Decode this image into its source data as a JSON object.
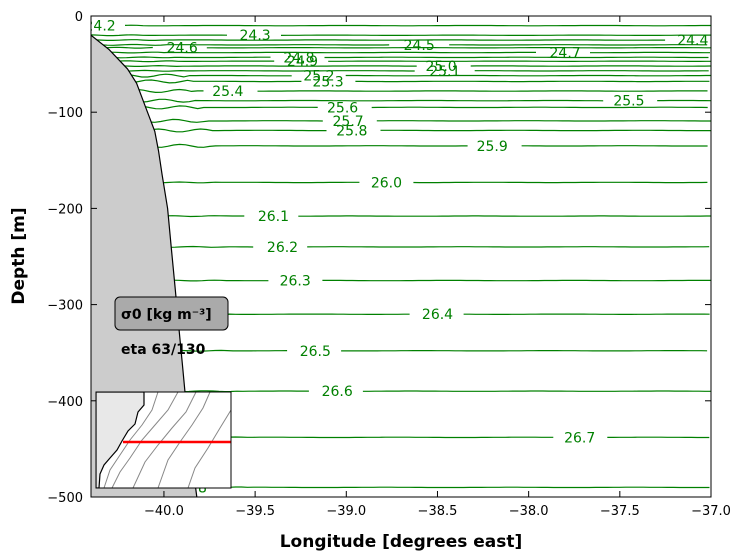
{
  "chart_data": {
    "type": "line",
    "variable_label": "σ0 [kg m⁻³]",
    "frame_label": "eta 63/130",
    "xlabel": "Longitude [degrees east]",
    "ylabel": "Depth [m]",
    "xlim": [
      -40.4,
      -37.0
    ],
    "ylim": [
      -500,
      0
    ],
    "xticks": [
      -40.0,
      -39.5,
      -39.0,
      -38.5,
      -38.0,
      -37.5,
      -37.0
    ],
    "xtick_labels": [
      "−40.0",
      "−39.5",
      "−39.0",
      "−38.5",
      "−38.0",
      "−37.5",
      "−37.0"
    ],
    "yticks": [
      0,
      -100,
      -200,
      -300,
      -400,
      -500
    ],
    "ytick_labels": [
      "0",
      "−100",
      "−200",
      "−300",
      "−400",
      "−500"
    ],
    "bathymetry": {
      "x": [
        -40.4,
        -40.3,
        -40.2,
        -40.15,
        -40.1,
        -40.05,
        -40.03,
        -40.01,
        -39.98,
        -39.96,
        -39.94,
        -39.92,
        -39.9,
        -39.88,
        -39.86,
        -39.84,
        -39.82
      ],
      "depth": [
        -20,
        -35,
        -55,
        -70,
        -95,
        -120,
        -140,
        -165,
        -200,
        -240,
        -280,
        -320,
        -360,
        -400,
        -440,
        -470,
        -500
      ]
    },
    "contours": [
      {
        "level": "24.2",
        "depth": -10,
        "label_lon": -40.35
      },
      {
        "level": "24.3",
        "depth": -20,
        "label_lon": -39.5
      },
      {
        "level": "24.4",
        "depth": -25,
        "label_lon": -37.1
      },
      {
        "level": "24.5",
        "depth": -30,
        "label_lon": -38.6
      },
      {
        "level": "24.6",
        "depth": -33,
        "label_lon": -39.9
      },
      {
        "level": "24.7",
        "depth": -38,
        "label_lon": -37.8
      },
      {
        "level": "24.8",
        "depth": -43,
        "label_lon": -39.26
      },
      {
        "level": "24.9",
        "depth": -47,
        "label_lon": -39.24
      },
      {
        "level": "25.0",
        "depth": -52,
        "label_lon": -38.48
      },
      {
        "level": "25.1",
        "depth": -57,
        "label_lon": -38.46
      },
      {
        "level": "25.2",
        "depth": -62,
        "label_lon": -39.15
      },
      {
        "level": "25.3",
        "depth": -68,
        "label_lon": -39.1
      },
      {
        "level": "25.4",
        "depth": -78,
        "label_lon": -39.65
      },
      {
        "level": "25.5",
        "depth": -88,
        "label_lon": -37.45
      },
      {
        "level": "25.6",
        "depth": -95,
        "label_lon": -39.02
      },
      {
        "level": "25.7",
        "depth": -109,
        "label_lon": -38.99
      },
      {
        "level": "25.8",
        "depth": -119,
        "label_lon": -38.97
      },
      {
        "level": "25.9",
        "depth": -135,
        "label_lon": -38.2
      },
      {
        "level": "26.0",
        "depth": -173,
        "label_lon": -38.78
      },
      {
        "level": "26.1",
        "depth": -208,
        "label_lon": -39.4
      },
      {
        "level": "26.2",
        "depth": -240,
        "label_lon": -39.35
      },
      {
        "level": "26.3",
        "depth": -275,
        "label_lon": -39.28
      },
      {
        "level": "26.4",
        "depth": -310,
        "label_lon": -38.5
      },
      {
        "level": "26.5",
        "depth": -348,
        "label_lon": -39.17
      },
      {
        "level": "26.6",
        "depth": -390,
        "label_lon": -39.05
      },
      {
        "level": "26.7",
        "depth": -438,
        "label_lon": -37.72
      },
      {
        "level": "26.8",
        "depth": -490,
        "label_lon": -39.85
      }
    ]
  },
  "colors": {
    "contour": "#008000",
    "bathymetry_fill": "#cccccc",
    "section_line": "#ff0000",
    "inset_contour": "#888888",
    "legend_box": "#aaaaaa"
  }
}
